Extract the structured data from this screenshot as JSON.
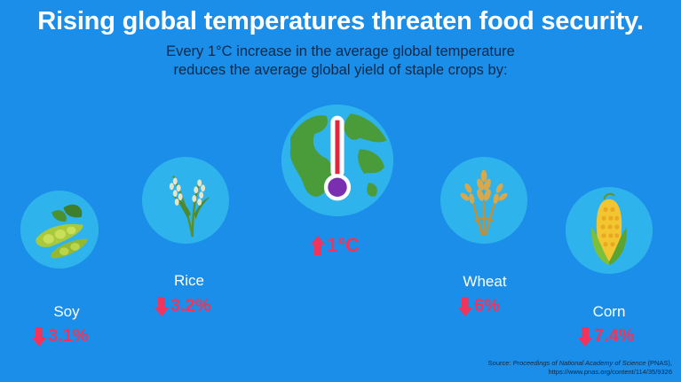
{
  "title": "Rising global temperatures threaten food security.",
  "subtitle": {
    "line1": "Every 1°C increase in the average global temperature",
    "line2": "reduces the average global yield of staple crops by:"
  },
  "center": {
    "icon": "globe-thermometer-icon",
    "value": "1°C",
    "direction": "up"
  },
  "crops": [
    {
      "name": "Soy",
      "value": "3.1%",
      "icon": "soybean-icon",
      "direction": "down"
    },
    {
      "name": "Rice",
      "value": "3.2%",
      "icon": "rice-icon",
      "direction": "down"
    },
    {
      "name": "Wheat",
      "value": "6%",
      "icon": "wheat-icon",
      "direction": "down"
    },
    {
      "name": "Corn",
      "value": "7.4%",
      "icon": "corn-icon",
      "direction": "down"
    }
  ],
  "source": {
    "prefix": "Source: ",
    "journal": "Proceedings of National Academy of Science",
    "suffix": " (PNAS),",
    "url": "https://www.pnas.org/content/114/35/9326"
  },
  "colors": {
    "background": "#1a8ee8",
    "circle": "#2fb3ec",
    "decrease": "#f0345c",
    "subtitle_text": "#0d2a4a"
  }
}
